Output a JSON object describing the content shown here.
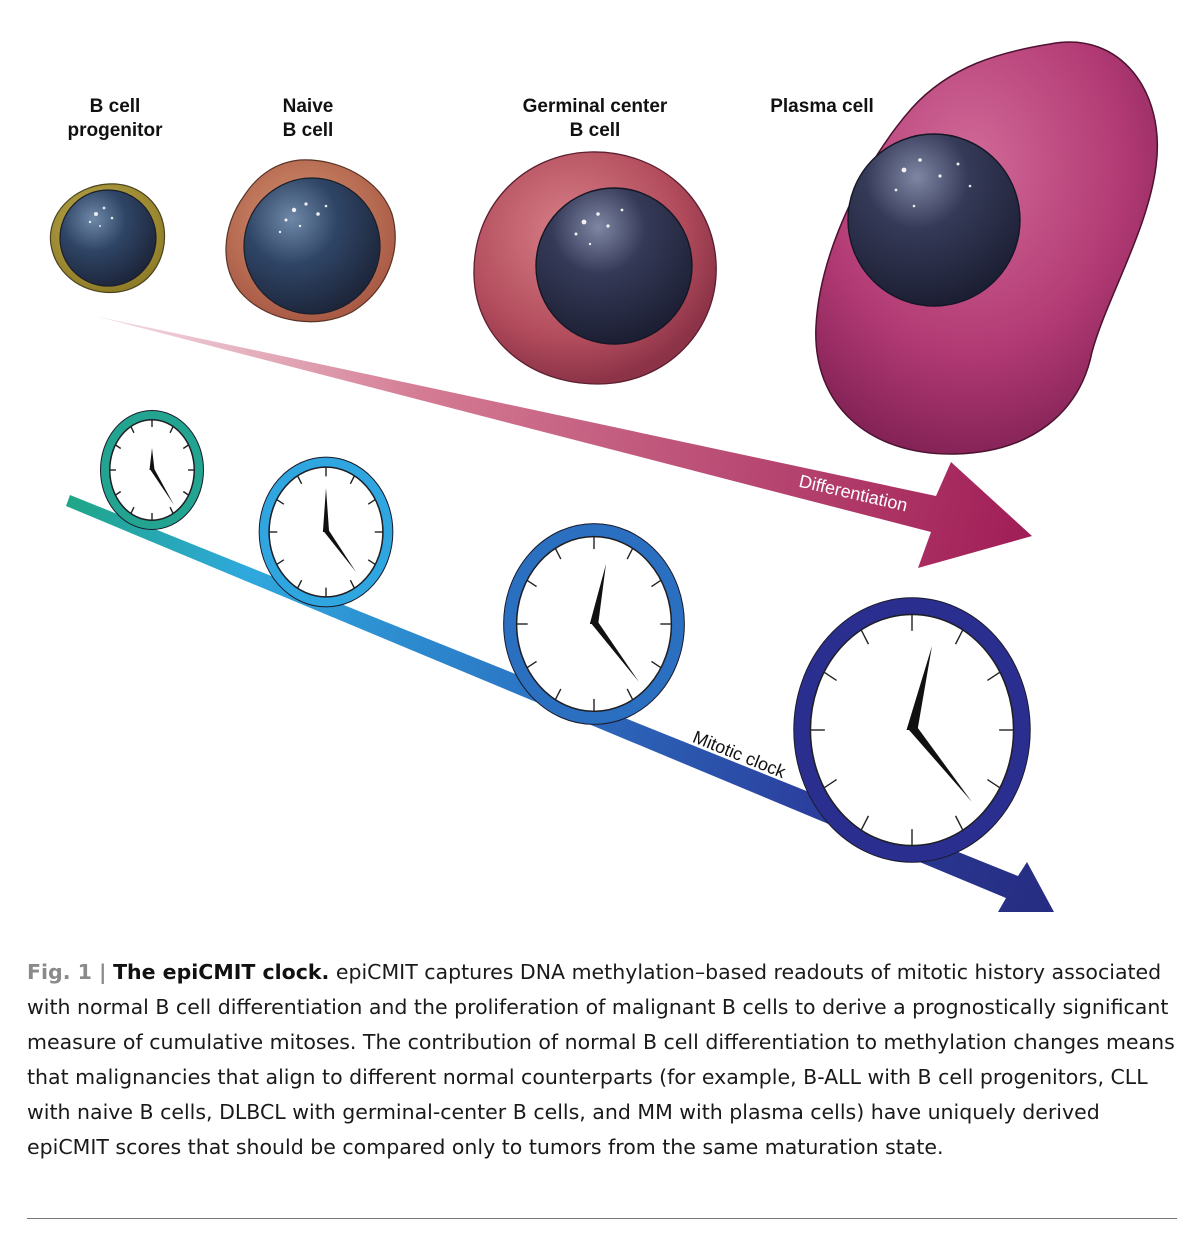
{
  "cells": [
    {
      "line1": "B cell",
      "line2": "progenitor",
      "icon": "progenitor-cell"
    },
    {
      "line1": "Naive",
      "line2": "B cell",
      "icon": "naive-cell"
    },
    {
      "line1": "Germinal center",
      "line2": "B cell",
      "icon": "germinal-center-cell"
    },
    {
      "line1": "Plasma cell",
      "line2": "",
      "icon": "plasma-cell"
    }
  ],
  "arrows": {
    "differentiation": "Differentiation",
    "mitotic_clock": "Mitotic clock"
  },
  "colors": {
    "differentiation_start": "#e6c2cc",
    "differentiation_end": "#a31c55",
    "clock_1": "#22a491",
    "clock_2": "#2fa6e0",
    "clock_3": "#2b6fc0",
    "clock_4": "#2a2f8f"
  },
  "caption": {
    "fig_num": "Fig. 1 |",
    "title": "The epiCMIT clock.",
    "text": "epiCMIT captures DNA methylation–based readouts of mitotic history associated with normal B cell differentiation and the proliferation of malignant B cells to derive a prognostically significant measure of cumulative mitoses. The contribution of normal B cell differentiation to methylation changes means that malignancies that align to different normal counterparts (for example, B-ALL with B cell progenitors, CLL with naive B cells, DLBCL with germinal-center B cells, and MM with plasma cells) have uniquely derived epiCMIT scores that should be compared only to tumors from the same maturation state."
  }
}
